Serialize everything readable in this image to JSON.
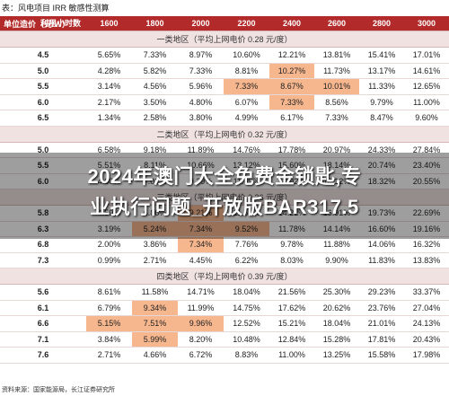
{
  "caption": "表：风电项目 IRR 敏感性测算",
  "header": {
    "hours_label": "利用小时数",
    "cost_label": "单位造价（元/W）",
    "columns": [
      "1600",
      "1800",
      "2000",
      "2200",
      "2400",
      "2600",
      "2800",
      "3000"
    ]
  },
  "sections": [
    {
      "title": "一类地区（平均上网电价 0.28 元/度）",
      "rows": [
        {
          "cost": "4.5",
          "values": [
            "5.65%",
            "7.33%",
            "8.97%",
            "10.60%",
            "12.21%",
            "13.81%",
            "15.41%",
            "17.01%"
          ],
          "highlight": []
        },
        {
          "cost": "5.0",
          "values": [
            "4.28%",
            "5.82%",
            "7.33%",
            "8.81%",
            "10.27%",
            "11.73%",
            "13.17%",
            "14.61%"
          ],
          "highlight": [
            4
          ]
        },
        {
          "cost": "5.5",
          "values": [
            "3.14%",
            "4.56%",
            "5.96%",
            "7.33%",
            "8.67%",
            "10.01%",
            "11.33%",
            "12.65%"
          ],
          "highlight": [
            3,
            4,
            5
          ]
        },
        {
          "cost": "6.0",
          "values": [
            "2.17%",
            "3.50%",
            "4.80%",
            "6.07%",
            "7.33%",
            "8.56%",
            "9.79%",
            "11.00%"
          ],
          "highlight": [
            4
          ]
        },
        {
          "cost": "6.5",
          "values": [
            "1.34%",
            "2.58%",
            "3.80%",
            "4.99%",
            "6.17%",
            "7.33%",
            "8.47%",
            "9.60%"
          ],
          "highlight": []
        }
      ]
    },
    {
      "title": "二类地区（平均上网电价 0.32 元/度）",
      "rows": [
        {
          "cost": "5.0",
          "values": [
            "6.58%",
            "9.18%",
            "11.89%",
            "14.76%",
            "17.78%",
            "20.97%",
            "24.33%",
            "27.84%"
          ],
          "highlight": []
        },
        {
          "cost": "5.5",
          "values": [
            "5.51%",
            "8.11%",
            "10.66%",
            "13.12%",
            "15.60%",
            "18.14%",
            "20.74%",
            "23.40%"
          ],
          "highlight": []
        },
        {
          "cost": "6.0",
          "values": [
            "4.60%",
            "7.02%",
            "9.39%",
            "11.69%",
            "13.92%",
            "16.12%",
            "18.32%",
            "20.55%"
          ],
          "highlight": []
        }
      ]
    },
    {
      "title": "三类地区（平均上网电价 0.36 元/度）",
      "rows": [
        {
          "cost": "5.8",
          "values": [
            "4.59%",
            "6.86%",
            "9.21%",
            "11.65%",
            "14.22%",
            "16.91%",
            "19.73%",
            "22.69%"
          ],
          "highlight": [
            2
          ]
        },
        {
          "cost": "6.3",
          "values": [
            "3.19%",
            "5.24%",
            "7.34%",
            "9.52%",
            "11.78%",
            "14.14%",
            "16.60%",
            "19.16%"
          ],
          "highlight": [
            1,
            2,
            3
          ]
        },
        {
          "cost": "6.8",
          "values": [
            "2.00%",
            "3.86%",
            "7.34%",
            "7.76%",
            "9.78%",
            "11.88%",
            "14.06%",
            "16.32%"
          ],
          "highlight": [
            2
          ]
        },
        {
          "cost": "7.3",
          "values": [
            "0.99%",
            "2.71%",
            "4.45%",
            "6.22%",
            "8.03%",
            "9.90%",
            "11.83%",
            "13.83%"
          ],
          "highlight": []
        }
      ]
    },
    {
      "title": "四类地区（平均上网电价 0.39 元/度）",
      "rows": [
        {
          "cost": "5.6",
          "values": [
            "8.61%",
            "11.58%",
            "14.71%",
            "18.04%",
            "21.56%",
            "25.30%",
            "29.23%",
            "33.37%"
          ],
          "highlight": []
        },
        {
          "cost": "6.1",
          "values": [
            "6.79%",
            "9.34%",
            "11.99%",
            "14.75%",
            "17.62%",
            "20.62%",
            "23.76%",
            "27.04%"
          ],
          "highlight": [
            1
          ]
        },
        {
          "cost": "6.6",
          "values": [
            "5.15%",
            "7.51%",
            "9.96%",
            "12.52%",
            "15.21%",
            "18.04%",
            "21.01%",
            "24.13%"
          ],
          "highlight": [
            0,
            1,
            2
          ]
        },
        {
          "cost": "7.1",
          "values": [
            "3.84%",
            "5.99%",
            "8.20%",
            "10.48%",
            "12.84%",
            "15.28%",
            "17.81%",
            "20.43%"
          ],
          "highlight": [
            1
          ]
        },
        {
          "cost": "7.6",
          "values": [
            "2.71%",
            "4.66%",
            "6.72%",
            "8.83%",
            "11.00%",
            "13.25%",
            "15.58%",
            "17.98%"
          ],
          "highlight": []
        }
      ]
    }
  ],
  "overlay_text_line1": "2024年澳门大全免费金锁匙,专",
  "overlay_text_line2": "业执行问题_开放版BAR317.5",
  "source": "资料来源：国家能源局，长江证券研究所",
  "colors": {
    "header_bg": "#b22a2a",
    "section_bg": "#f1e2e2",
    "highlight": "#f6b78e"
  }
}
